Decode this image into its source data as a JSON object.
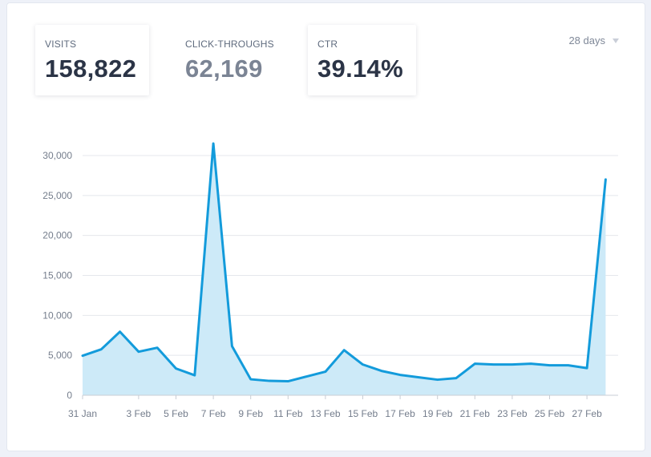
{
  "stats": {
    "visits": {
      "label": "VISITS",
      "value": "158,822"
    },
    "clicks": {
      "label": "CLICK-THROUGHS",
      "value": "62,169"
    },
    "ctr": {
      "label": "CTR",
      "value": "39.14%"
    }
  },
  "range_selector": {
    "label": "28 days"
  },
  "colors": {
    "line": "#139bdb",
    "fill": "#cdeaf8",
    "grid": "#e4e7ec",
    "axis": "#c9cdd4"
  },
  "chart_data": {
    "type": "area",
    "title": "",
    "xlabel": "",
    "ylabel": "",
    "ylim": [
      0,
      30000
    ],
    "grid": true,
    "y_ticks": [
      0,
      5000,
      10000,
      15000,
      20000,
      25000,
      30000
    ],
    "y_tick_labels": [
      "0",
      "5,000",
      "10,000",
      "15,000",
      "20,000",
      "25,000",
      "30,000"
    ],
    "x": [
      "31 Jan",
      "1 Feb",
      "2 Feb",
      "3 Feb",
      "4 Feb",
      "5 Feb",
      "6 Feb",
      "7 Feb",
      "8 Feb",
      "9 Feb",
      "10 Feb",
      "11 Feb",
      "12 Feb",
      "13 Feb",
      "14 Feb",
      "15 Feb",
      "16 Feb",
      "17 Feb",
      "18 Feb",
      "19 Feb",
      "20 Feb",
      "21 Feb",
      "22 Feb",
      "23 Feb",
      "24 Feb",
      "25 Feb",
      "26 Feb",
      "27 Feb",
      "28 Feb"
    ],
    "x_tick_labels": [
      "31 Jan",
      "3 Feb",
      "5 Feb",
      "7 Feb",
      "9 Feb",
      "11 Feb",
      "13 Feb",
      "15 Feb",
      "17 Feb",
      "19 Feb",
      "21 Feb",
      "23 Feb",
      "25 Feb",
      "27 Feb"
    ],
    "x_tick_index": [
      0,
      3,
      5,
      7,
      9,
      11,
      13,
      15,
      17,
      19,
      21,
      23,
      25,
      27
    ],
    "series": [
      {
        "name": "Visits",
        "values": [
          4950,
          5750,
          7950,
          5450,
          5950,
          3350,
          2500,
          31500,
          6150,
          2000,
          1800,
          1750,
          2350,
          2950,
          5650,
          3850,
          3050,
          2550,
          2250,
          1950,
          2150,
          3950,
          3850,
          3850,
          3950,
          3750,
          3750,
          3400,
          27000
        ]
      }
    ]
  }
}
